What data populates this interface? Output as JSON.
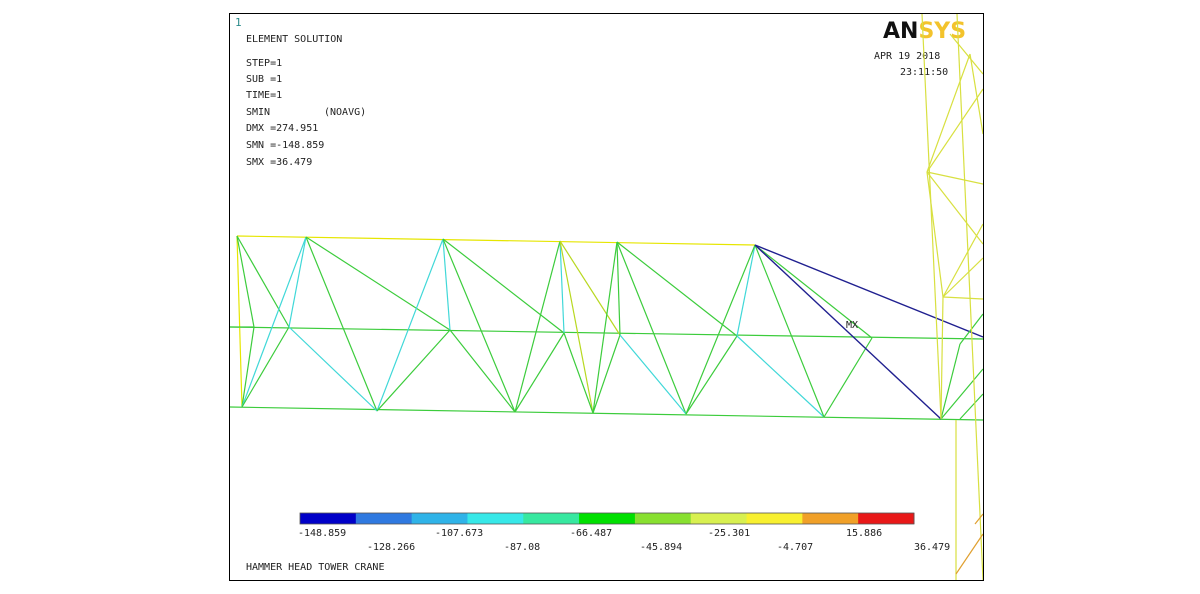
{
  "window_number": "1",
  "header": {
    "title": "ELEMENT SOLUTION",
    "lines": [
      "STEP=1",
      "SUB =1",
      "TIME=1"
    ],
    "smin_label": "SMIN",
    "nodal_avg": "(NOAVG)",
    "dmx": "DMX =274.951",
    "smn": "SMN =-148.859",
    "smx": "SMX =36.479"
  },
  "logo": {
    "part1": "AN",
    "part2": "SYS"
  },
  "date": "APR 19 2018",
  "time": "23:11:50",
  "mx_label": "MX",
  "legend": {
    "colors": [
      "#0000c8",
      "#2f79e0",
      "#2fb3e8",
      "#37e8e8",
      "#37e8a0",
      "#00e000",
      "#88e030",
      "#d8f050",
      "#f8f030",
      "#f0a028",
      "#e81818"
    ],
    "top_labels": [
      "-148.859",
      "-107.673",
      "-66.487",
      "-25.301",
      "15.886"
    ],
    "bottom_labels": [
      "-128.266",
      "-87.08",
      "-45.894",
      "-4.707",
      "36.479"
    ]
  },
  "footer": "HAMMER HEAD TOWER CRANE",
  "members_colors": {
    "top_chord": "#e6e600",
    "chord": "#3ccc3c",
    "diag_green": "#3ccc3c",
    "diag_cyan": "#40d8d8",
    "diag_yellow": "#b8d820",
    "blue": "#202090",
    "tower": "#d8e040",
    "tower_orange": "#e0a030"
  }
}
